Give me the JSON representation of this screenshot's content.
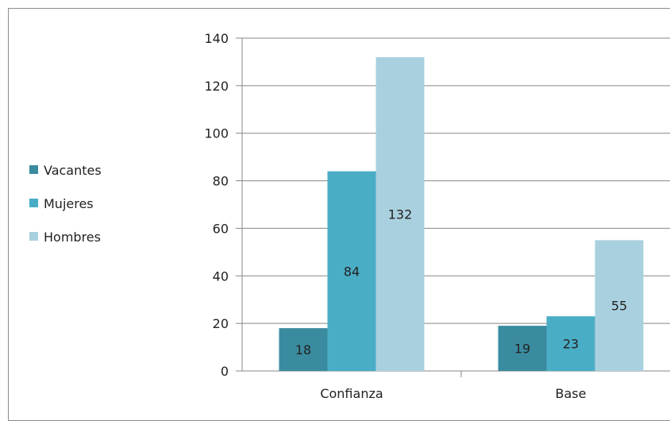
{
  "chart_data": {
    "type": "bar",
    "categories": [
      "Confianza",
      "Base"
    ],
    "series": [
      {
        "name": "Vacantes",
        "color": "#3A8BA0",
        "values": [
          18,
          19
        ]
      },
      {
        "name": "Mujeres",
        "color": "#4AADC6",
        "values": [
          84,
          23
        ]
      },
      {
        "name": "Hombres",
        "color": "#A9D0DE",
        "values": [
          132,
          55
        ]
      }
    ],
    "ylim": [
      0,
      140
    ],
    "yticks": [
      0,
      20,
      40,
      60,
      80,
      100,
      120,
      140
    ],
    "grid": true,
    "legend_position": "left",
    "data_labels": true
  }
}
